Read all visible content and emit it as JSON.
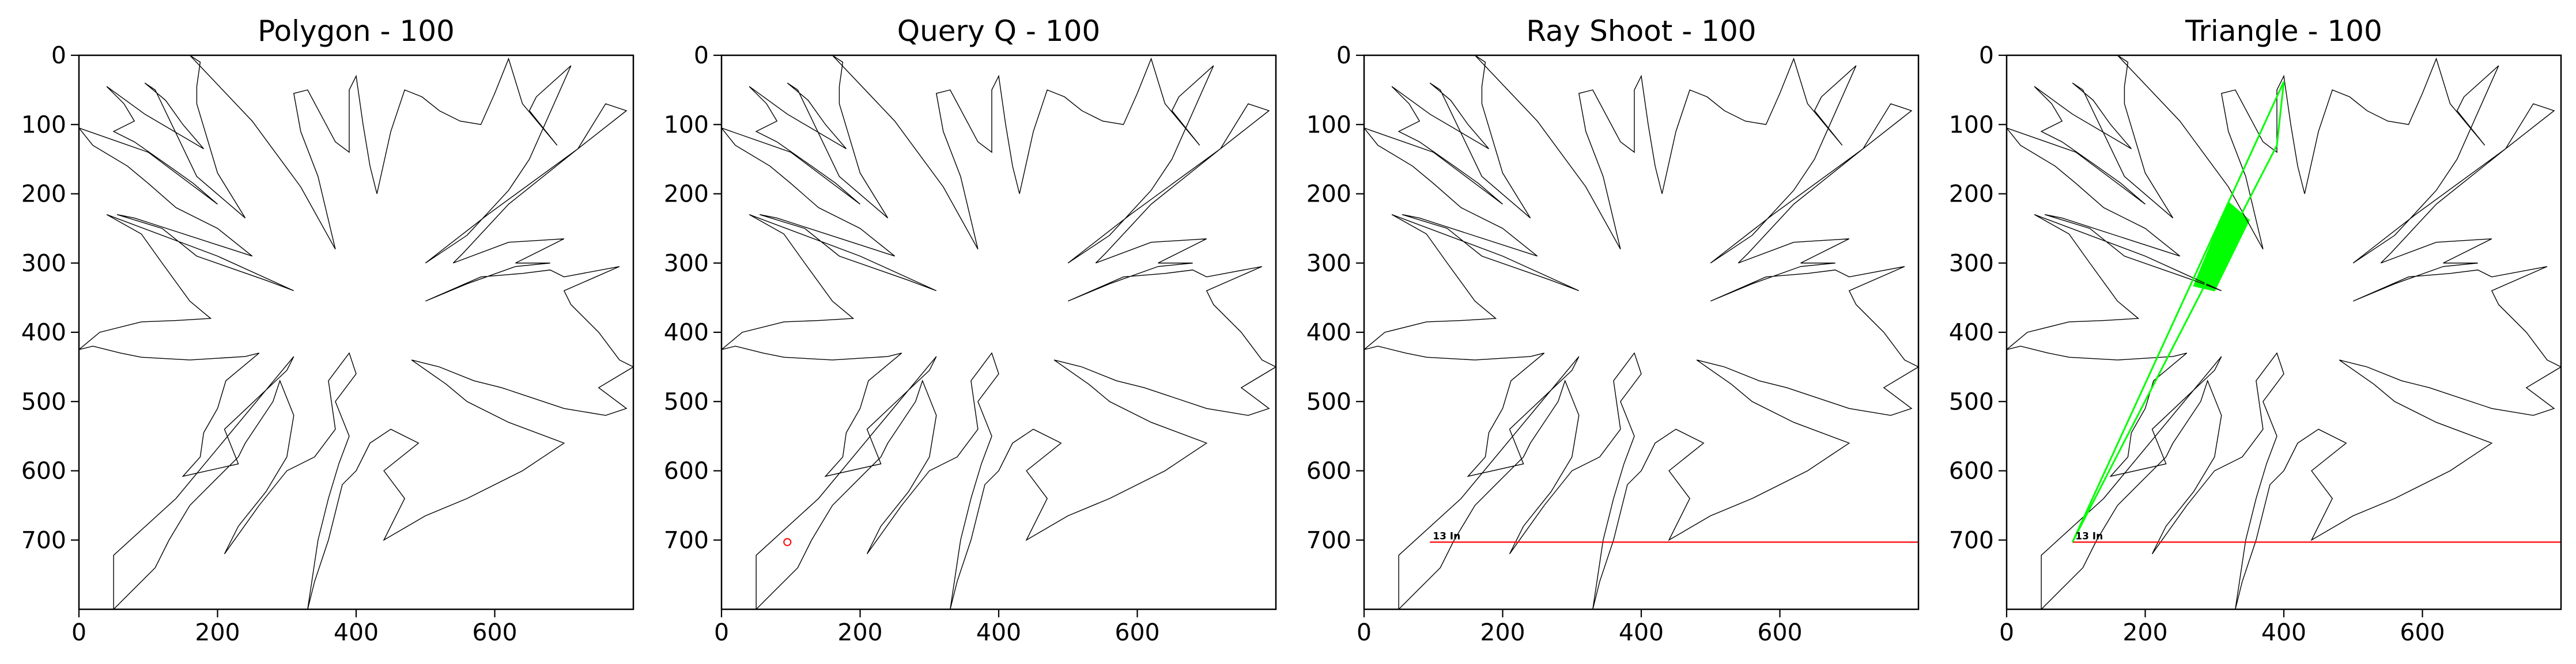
{
  "figure": {
    "colors": {
      "polygon_stroke": "#000000",
      "query_point": "#ff0000",
      "ray": "#ff0000",
      "triangle": "#00ff00",
      "axes_frame": "#000000",
      "background": "#ffffff"
    }
  },
  "chart_data": [
    {
      "type": "line",
      "title": "Polygon - 100",
      "xlim": [
        0,
        800
      ],
      "ylim": [
        800,
        0
      ],
      "x_ticks": [
        "0",
        "200",
        "400",
        "600"
      ],
      "y_ticks": [
        "0",
        "100",
        "200",
        "300",
        "400",
        "500",
        "600",
        "700"
      ],
      "grid": false,
      "elements": [
        "polygon"
      ]
    },
    {
      "type": "line",
      "title": "Query Q - 100",
      "xlim": [
        0,
        800
      ],
      "ylim": [
        800,
        0
      ],
      "x_ticks": [
        "0",
        "200",
        "400",
        "600"
      ],
      "y_ticks": [
        "0",
        "100",
        "200",
        "300",
        "400",
        "500",
        "600",
        "700"
      ],
      "grid": false,
      "elements": [
        "polygon",
        "query_point"
      ]
    },
    {
      "type": "line",
      "title": "Ray Shoot - 100",
      "xlim": [
        0,
        800
      ],
      "ylim": [
        800,
        0
      ],
      "x_ticks": [
        "0",
        "200",
        "400",
        "600"
      ],
      "y_ticks": [
        "0",
        "100",
        "200",
        "300",
        "400",
        "500",
        "600",
        "700"
      ],
      "grid": false,
      "elements": [
        "polygon",
        "ray",
        "ray_label"
      ]
    },
    {
      "type": "line",
      "title": "Triangle - 100",
      "xlim": [
        0,
        800
      ],
      "ylim": [
        800,
        0
      ],
      "x_ticks": [
        "0",
        "200",
        "400",
        "600"
      ],
      "y_ticks": [
        "0",
        "100",
        "200",
        "300",
        "400",
        "500",
        "600",
        "700"
      ],
      "grid": false,
      "elements": [
        "polygon",
        "ray",
        "ray_label",
        "triangle",
        "triangle_fill"
      ]
    }
  ],
  "shared": {
    "query_point": {
      "x": 95,
      "y": 703
    },
    "ray": {
      "y": 703,
      "x_start": 95,
      "x_end": 800
    },
    "ray_label": {
      "text": "13 In",
      "x": 95,
      "y": 703
    },
    "triangle": [
      [
        95,
        703
      ],
      [
        400,
        38
      ],
      [
        390,
        130
      ]
    ],
    "triangle_fill": [
      [
        270,
        333
      ],
      [
        300,
        340
      ],
      [
        350,
        238
      ],
      [
        320,
        212
      ]
    ],
    "polygon": [
      [
        50,
        800
      ],
      [
        50,
        722
      ],
      [
        140,
        640
      ],
      [
        310,
        435
      ],
      [
        300,
        455
      ],
      [
        210,
        540
      ],
      [
        230,
        590
      ],
      [
        150,
        608
      ],
      [
        175,
        580
      ],
      [
        180,
        545
      ],
      [
        200,
        510
      ],
      [
        212,
        470
      ],
      [
        260,
        430
      ],
      [
        240,
        435
      ],
      [
        160,
        440
      ],
      [
        90,
        436
      ],
      [
        60,
        430
      ],
      [
        20,
        420
      ],
      [
        0,
        425
      ],
      [
        30,
        400
      ],
      [
        90,
        385
      ],
      [
        140,
        383
      ],
      [
        190,
        380
      ],
      [
        160,
        355
      ],
      [
        120,
        300
      ],
      [
        90,
        258
      ],
      [
        40,
        230
      ],
      [
        200,
        290
      ],
      [
        310,
        340
      ],
      [
        270,
        325
      ],
      [
        170,
        290
      ],
      [
        120,
        250
      ],
      [
        55,
        230
      ],
      [
        80,
        235
      ],
      [
        250,
        290
      ],
      [
        225,
        270
      ],
      [
        200,
        250
      ],
      [
        140,
        220
      ],
      [
        100,
        185
      ],
      [
        70,
        160
      ],
      [
        20,
        130
      ],
      [
        0,
        105
      ],
      [
        100,
        140
      ],
      [
        200,
        215
      ],
      [
        165,
        185
      ],
      [
        130,
        160
      ],
      [
        80,
        125
      ],
      [
        50,
        110
      ],
      [
        80,
        95
      ],
      [
        65,
        70
      ],
      [
        40,
        45
      ],
      [
        95,
        85
      ],
      [
        180,
        135
      ],
      [
        150,
        100
      ],
      [
        125,
        65
      ],
      [
        95,
        40
      ],
      [
        110,
        50
      ],
      [
        170,
        175
      ],
      [
        240,
        235
      ],
      [
        200,
        170
      ],
      [
        170,
        70
      ],
      [
        170,
        45
      ],
      [
        175,
        10
      ],
      [
        160,
        0
      ],
      [
        250,
        95
      ],
      [
        320,
        190
      ],
      [
        370,
        280
      ],
      [
        345,
        175
      ],
      [
        320,
        110
      ],
      [
        310,
        55
      ],
      [
        330,
        50
      ],
      [
        370,
        125
      ],
      [
        390,
        140
      ],
      [
        390,
        50
      ],
      [
        400,
        30
      ],
      [
        410,
        100
      ],
      [
        420,
        160
      ],
      [
        430,
        200
      ],
      [
        450,
        110
      ],
      [
        470,
        50
      ],
      [
        495,
        60
      ],
      [
        520,
        80
      ],
      [
        550,
        95
      ],
      [
        580,
        100
      ],
      [
        600,
        55
      ],
      [
        620,
        5
      ],
      [
        640,
        70
      ],
      [
        690,
        130
      ],
      [
        650,
        80
      ],
      [
        660,
        60
      ],
      [
        710,
        15
      ],
      [
        650,
        150
      ],
      [
        620,
        195
      ],
      [
        560,
        260
      ],
      [
        500,
        300
      ],
      [
        590,
        230
      ],
      [
        720,
        135
      ],
      [
        760,
        70
      ],
      [
        790,
        80
      ],
      [
        720,
        135
      ],
      [
        620,
        215
      ],
      [
        555,
        285
      ],
      [
        540,
        300
      ],
      [
        620,
        270
      ],
      [
        700,
        265
      ],
      [
        660,
        285
      ],
      [
        630,
        300
      ],
      [
        680,
        300
      ],
      [
        630,
        305
      ],
      [
        560,
        330
      ],
      [
        500,
        355
      ],
      [
        580,
        320
      ],
      [
        640,
        315
      ],
      [
        680,
        310
      ],
      [
        700,
        320
      ],
      [
        780,
        305
      ],
      [
        700,
        340
      ],
      [
        710,
        360
      ],
      [
        750,
        400
      ],
      [
        780,
        440
      ],
      [
        800,
        450
      ],
      [
        750,
        480
      ],
      [
        790,
        510
      ],
      [
        760,
        520
      ],
      [
        700,
        510
      ],
      [
        610,
        480
      ],
      [
        570,
        470
      ],
      [
        520,
        450
      ],
      [
        480,
        440
      ],
      [
        530,
        475
      ],
      [
        560,
        500
      ],
      [
        620,
        530
      ],
      [
        700,
        560
      ],
      [
        670,
        580
      ],
      [
        640,
        600
      ],
      [
        560,
        640
      ],
      [
        500,
        665
      ],
      [
        440,
        700
      ],
      [
        470,
        640
      ],
      [
        440,
        600
      ],
      [
        490,
        560
      ],
      [
        450,
        540
      ],
      [
        420,
        560
      ],
      [
        400,
        600
      ],
      [
        380,
        620
      ],
      [
        360,
        700
      ],
      [
        340,
        760
      ],
      [
        330,
        800
      ],
      [
        345,
        700
      ],
      [
        360,
        640
      ],
      [
        375,
        590
      ],
      [
        390,
        550
      ],
      [
        370,
        500
      ],
      [
        400,
        460
      ],
      [
        390,
        430
      ],
      [
        360,
        470
      ],
      [
        370,
        540
      ],
      [
        340,
        580
      ],
      [
        300,
        600
      ],
      [
        260,
        650
      ],
      [
        210,
        720
      ],
      [
        230,
        680
      ],
      [
        270,
        630
      ],
      [
        300,
        580
      ],
      [
        310,
        520
      ],
      [
        290,
        470
      ],
      [
        280,
        500
      ],
      [
        240,
        560
      ],
      [
        230,
        580
      ],
      [
        190,
        620
      ],
      [
        160,
        650
      ],
      [
        130,
        700
      ],
      [
        110,
        740
      ],
      [
        80,
        770
      ],
      [
        50,
        800
      ]
    ]
  }
}
